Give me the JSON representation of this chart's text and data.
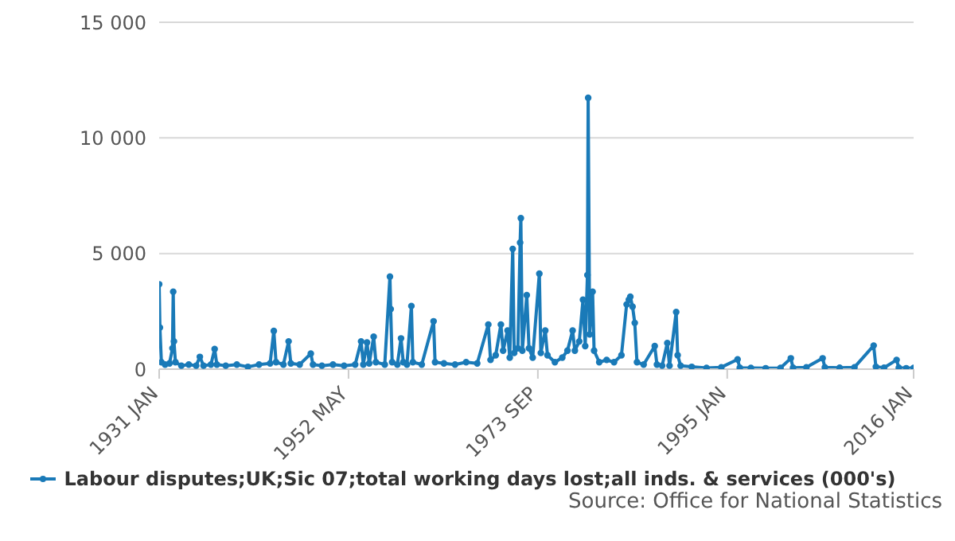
{
  "chart_data": {
    "type": "line",
    "legend": "bottom",
    "grid": "y",
    "marker": "circle",
    "line_style": "solid",
    "annotations": [
      "Source: Office for National Statistics"
    ],
    "xlim": [
      "1931-01",
      "2016-01"
    ],
    "xticks": [
      {
        "value": "1931-01",
        "label": "1931 JAN"
      },
      {
        "value": "1952-05",
        "label": "1952 MAY"
      },
      {
        "value": "1973-09",
        "label": "1973 SEP"
      },
      {
        "value": "1995-01",
        "label": "1995 JAN"
      },
      {
        "value": "2016-01",
        "label": "2016 JAN"
      }
    ],
    "ylim": [
      0,
      15000
    ],
    "yticks": [
      0,
      {
        "value": 5000,
        "label": "5 000"
      },
      {
        "value": 10000,
        "label": "10 000"
      },
      {
        "value": 15000,
        "label": "15 000"
      }
    ],
    "series": [
      {
        "name": "Labour disputes;UK;Sic 07;total working days lost;all inds. & services (000's)",
        "color": "#1a7ab8",
        "x": [
          "1931-01",
          "1931-02",
          "1931-04",
          "1931-09",
          "1932-03",
          "1932-07",
          "1932-08",
          "1932-09",
          "1932-11",
          "1933-07",
          "1934-05",
          "1935-03",
          "1935-08",
          "1936-01",
          "1936-11",
          "1937-04",
          "1937-07",
          "1938-07",
          "1939-10",
          "1941-01",
          "1942-04",
          "1943-07",
          "1943-12",
          "1944-03",
          "1945-01",
          "1945-08",
          "1945-11",
          "1946-11",
          "1948-02",
          "1948-05",
          "1949-05",
          "1950-08",
          "1951-11",
          "1953-02",
          "1953-10",
          "1954-01",
          "1954-06",
          "1954-09",
          "1955-03",
          "1955-06",
          "1956-06",
          "1957-01",
          "1957-02",
          "1957-04",
          "1957-11",
          "1958-04",
          "1958-07",
          "1958-12",
          "1959-06",
          "1959-08",
          "1960-08",
          "1961-12",
          "1962-02",
          "1963-02",
          "1964-05",
          "1965-08",
          "1966-11",
          "1968-02",
          "1968-05",
          "1968-12",
          "1969-07",
          "1969-10",
          "1970-04",
          "1970-07",
          "1970-11",
          "1971-01",
          "1971-06",
          "1971-09",
          "1971-10",
          "1971-12",
          "1972-06",
          "1972-09",
          "1973-02",
          "1973-11",
          "1974-01",
          "1974-07",
          "1974-10",
          "1975-08",
          "1976-06",
          "1977-01",
          "1977-08",
          "1977-11",
          "1978-05",
          "1978-10",
          "1979-01",
          "1979-04",
          "1979-05",
          "1979-07",
          "1979-11",
          "1980-01",
          "1980-08",
          "1981-06",
          "1982-04",
          "1983-02",
          "1983-09",
          "1983-12",
          "1984-02",
          "1984-05",
          "1984-08",
          "1984-11",
          "1985-08",
          "1986-11",
          "1987-02",
          "1987-09",
          "1988-04",
          "1988-07",
          "1989-04",
          "1989-06",
          "1989-10",
          "1991-01",
          "1992-09",
          "1994-05",
          "1996-03",
          "1996-06",
          "1997-09",
          "1999-05",
          "2001-01",
          "2002-03",
          "2002-06",
          "2003-12",
          "2005-10",
          "2006-01",
          "2007-09",
          "2009-05",
          "2011-07",
          "2011-10",
          "2012-09",
          "2014-02",
          "2014-05",
          "2015-03",
          "2016-01"
        ],
        "values": [
          3670,
          1800,
          300,
          200,
          250,
          900,
          3350,
          1200,
          300,
          150,
          200,
          150,
          530,
          150,
          200,
          870,
          200,
          150,
          200,
          100,
          200,
          250,
          1650,
          300,
          200,
          1200,
          250,
          200,
          670,
          200,
          150,
          200,
          150,
          200,
          1200,
          200,
          1150,
          250,
          1400,
          300,
          200,
          4000,
          2600,
          300,
          200,
          1330,
          300,
          200,
          2730,
          300,
          200,
          2070,
          300,
          250,
          200,
          300,
          250,
          1930,
          400,
          600,
          1930,
          800,
          1670,
          500,
          5200,
          700,
          900,
          5470,
          6530,
          800,
          3200,
          900,
          500,
          4130,
          700,
          1670,
          600,
          300,
          500,
          800,
          1670,
          800,
          1200,
          3000,
          1000,
          4070,
          11730,
          1500,
          3350,
          800,
          300,
          400,
          300,
          600,
          2800,
          3000,
          3130,
          2700,
          2000,
          300,
          200,
          1000,
          200,
          150,
          1130,
          150,
          2470,
          600,
          150,
          100,
          50,
          80,
          420,
          60,
          50,
          40,
          50,
          470,
          60,
          80,
          470,
          80,
          60,
          80,
          1020,
          100,
          60,
          400,
          60,
          40,
          50
        ]
      }
    ]
  }
}
